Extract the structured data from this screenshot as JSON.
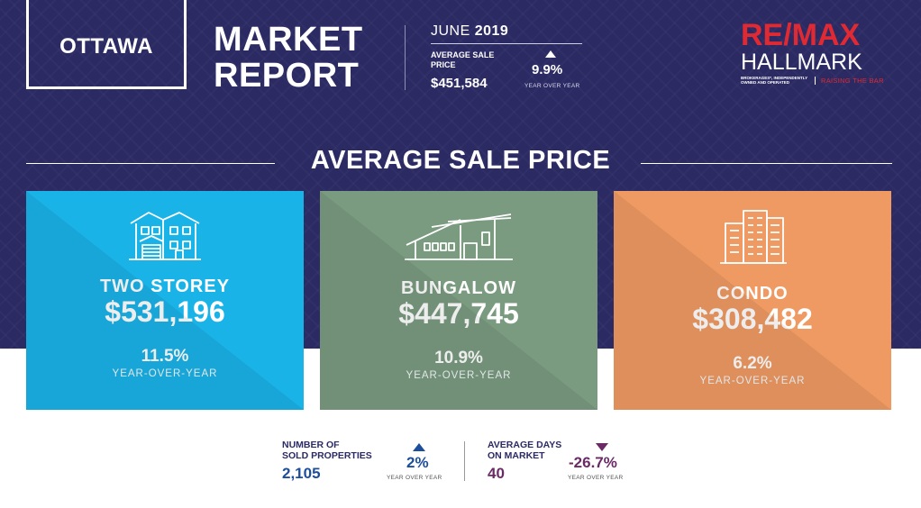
{
  "header": {
    "city": "OTTAWA",
    "title_line1": "MARKET",
    "title_line2": "REPORT",
    "month": "JUNE",
    "year": "2019",
    "avg_label_line1": "AVERAGE SALE",
    "avg_label_line2": "PRICE",
    "avg_value": "$451,584",
    "avg_change": "9.9%",
    "avg_change_caption": "YEAR OVER YEAR",
    "avg_change_direction": "up"
  },
  "logo": {
    "brand": "RE/MAX",
    "office": "HALLMARK",
    "fineprint": "BROKERAGES*, INDEPENDENTLY OWNED AND OPERATED",
    "tagline": "RAISING THE BAR",
    "brand_color": "#e02a33"
  },
  "section": {
    "title": "AVERAGE SALE PRICE"
  },
  "cards": [
    {
      "type": "TWO STOREY",
      "price": "$531,196",
      "change": "11.5%",
      "caption": "YEAR-OVER-YEAR",
      "icon": "house-two-storey-icon",
      "color": "#1ab3e8"
    },
    {
      "type": "BUNGALOW",
      "price": "$447,745",
      "change": "10.9%",
      "caption": "YEAR-OVER-YEAR",
      "icon": "bungalow-icon",
      "color": "#7a9b80"
    },
    {
      "type": "CONDO",
      "price": "$308,482",
      "change": "6.2%",
      "caption": "YEAR-OVER-YEAR",
      "icon": "condo-building-icon",
      "color": "#ef9a62"
    }
  ],
  "footer": {
    "sold": {
      "label_line1": "NUMBER OF",
      "label_line2": "SOLD PROPERTIES",
      "value": "2,105",
      "change": "2%",
      "caption": "YEAR OVER YEAR",
      "direction": "up",
      "color": "#1c4e9c"
    },
    "days": {
      "label_line1": "AVERAGE DAYS",
      "label_line2": "ON MARKET",
      "value": "40",
      "change": "-26.7%",
      "caption": "YEAR OVER YEAR",
      "direction": "down",
      "color": "#6b2a66"
    }
  },
  "colors": {
    "background": "#2b2a63"
  }
}
